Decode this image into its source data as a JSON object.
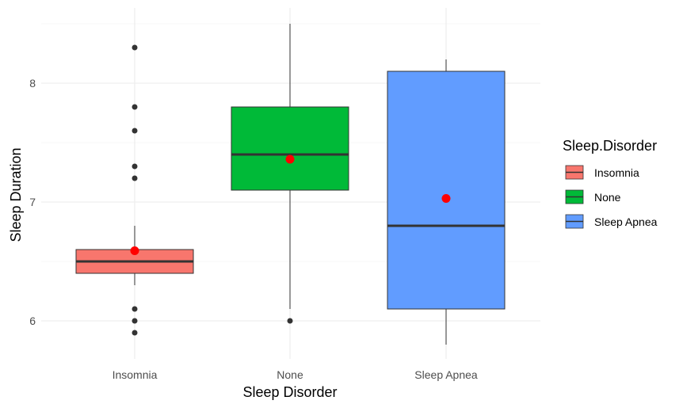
{
  "chart_data": {
    "type": "boxplot",
    "title": "",
    "xlabel": "Sleep Disorder",
    "ylabel": "Sleep Duration",
    "ylim": [
      5.7,
      8.55
    ],
    "yticks": [
      6,
      7,
      8
    ],
    "grid": true,
    "legend": {
      "title": "Sleep.Disorder",
      "position": "right"
    },
    "categories": [
      "Insomnia",
      "None",
      "Sleep Apnea"
    ],
    "series": [
      {
        "name": "Insomnia",
        "color": "#F8766D",
        "whisker_low": 6.3,
        "q1": 6.4,
        "median": 6.5,
        "q3": 6.6,
        "whisker_high": 6.8,
        "mean": 6.59,
        "outliers": [
          8.3,
          7.8,
          7.6,
          7.3,
          7.2,
          6.1,
          6.0,
          5.9
        ]
      },
      {
        "name": "None",
        "color": "#00BA38",
        "whisker_low": 6.1,
        "q1": 7.1,
        "median": 7.4,
        "q3": 7.8,
        "whisker_high": 8.5,
        "mean": 7.36,
        "outliers": [
          6.0
        ]
      },
      {
        "name": "Sleep Apnea",
        "color": "#619CFF",
        "whisker_low": 5.8,
        "q1": 6.1,
        "median": 6.8,
        "q3": 8.1,
        "whisker_high": 8.2,
        "mean": 7.03,
        "outliers": []
      }
    ],
    "mean_marker_color": "#FF0000",
    "outlier_color": "#333333"
  }
}
